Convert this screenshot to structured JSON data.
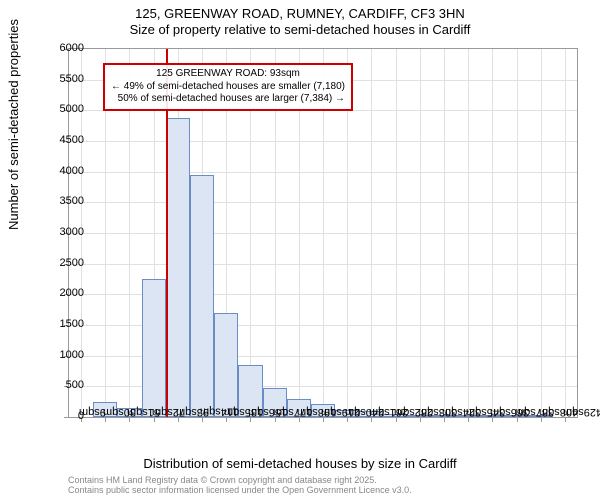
{
  "title": {
    "line1": "125, GREENWAY ROAD, RUMNEY, CARDIFF, CF3 3HN",
    "line2": "Size of property relative to semi-detached houses in Cardiff",
    "fontsize": 13,
    "color": "#000000"
  },
  "chart": {
    "type": "histogram",
    "background_color": "#ffffff",
    "border_color": "#999999",
    "grid_color": "#e0e0e0",
    "bar_fill": "#dbe5f4",
    "bar_border": "#6a8cc7",
    "x_categories": [
      "9sqm",
      "30sqm",
      "51sqm",
      "72sqm",
      "93sqm",
      "114sqm",
      "135sqm",
      "156sqm",
      "177sqm",
      "198sqm",
      "219sqm",
      "240sqm",
      "261sqm",
      "282sqm",
      "303sqm",
      "324sqm",
      "345sqm",
      "366sqm",
      "387sqm",
      "408sqm",
      "429sqm"
    ],
    "values": [
      0,
      250,
      150,
      2250,
      4880,
      3950,
      1700,
      850,
      480,
      300,
      220,
      110,
      90,
      50,
      30,
      20,
      10,
      10,
      5,
      5,
      0
    ],
    "ylim": [
      0,
      6000
    ],
    "ytick_step": 500,
    "yticks": [
      0,
      500,
      1000,
      1500,
      2000,
      2500,
      3000,
      3500,
      4000,
      4500,
      5000,
      5500,
      6000
    ],
    "ylabel": "Number of semi-detached properties",
    "xlabel": "Distribution of semi-detached houses by size in Cardiff",
    "label_fontsize": 13,
    "tick_fontsize": 11,
    "bar_width_ratio": 1.0
  },
  "marker": {
    "position_category_index": 4,
    "color": "#cc0000",
    "width": 2
  },
  "annotation": {
    "line1": "125 GREENWAY ROAD: 93sqm",
    "line2": "← 49% of semi-detached houses are smaller (7,180)",
    "line3": "50% of semi-detached houses are larger (7,384) →",
    "border_color": "#cc0000",
    "background": "rgba(255,255,255,0.9)",
    "fontsize": 10
  },
  "footer": {
    "line1": "Contains HM Land Registry data © Crown copyright and database right 2025.",
    "line2": "Contains public sector information licensed under the Open Government Licence v3.0.",
    "color": "#888888",
    "fontsize": 9
  }
}
